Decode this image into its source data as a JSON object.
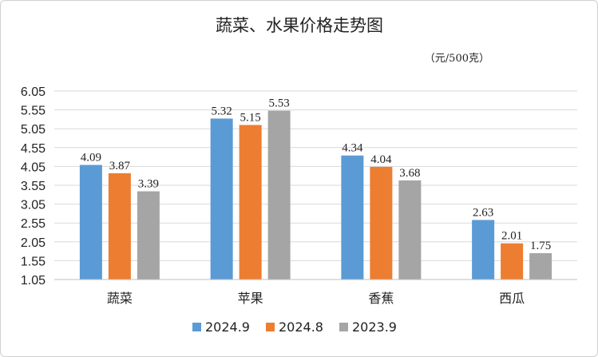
{
  "chart_data": {
    "type": "bar",
    "title": "蔬菜、水果价格走势图",
    "unit": "（元/500克）",
    "categories": [
      "蔬菜",
      "苹果",
      "香蕉",
      "西瓜"
    ],
    "series": [
      {
        "name": "2024.9",
        "color": "#5b9bd5",
        "values": [
          4.09,
          5.32,
          4.34,
          2.63
        ]
      },
      {
        "name": "2024.8",
        "color": "#ed7d31",
        "values": [
          3.87,
          5.15,
          4.04,
          2.01
        ]
      },
      {
        "name": "2023.9",
        "color": "#a5a5a5",
        "values": [
          3.39,
          5.53,
          3.68,
          1.75
        ]
      }
    ],
    "ylim": [
      1.05,
      6.05
    ],
    "yticks": [
      "1.05",
      "1.55",
      "2.05",
      "2.55",
      "3.05",
      "3.55",
      "4.05",
      "4.55",
      "5.05",
      "5.55",
      "6.05"
    ],
    "grid": true,
    "legend_position": "bottom"
  }
}
